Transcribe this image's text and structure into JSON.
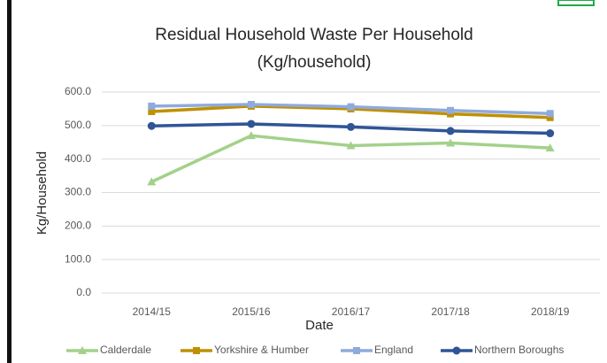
{
  "chart_data": {
    "type": "line",
    "title": "Residual Household Waste Per Household",
    "subtitle": "(Kg/household)",
    "x_label": "Date",
    "y_label": "Kg/Household",
    "categories": [
      "2014/15",
      "2015/16",
      "2016/17",
      "2017/18",
      "2018/19"
    ],
    "series": [
      {
        "name": "Calderdale",
        "color": "#a3d18a",
        "marker": "triangle",
        "values": [
          332,
          470,
          440,
          448,
          433
        ]
      },
      {
        "name": "Yorkshire & Humber",
        "color": "#bf9000",
        "marker": "square",
        "values": [
          542,
          558,
          550,
          535,
          524
        ]
      },
      {
        "name": "England",
        "color": "#8faadc",
        "marker": "square",
        "values": [
          558,
          563,
          556,
          545,
          536
        ]
      },
      {
        "name": "Northern Boroughs",
        "color": "#2f5597",
        "marker": "circle",
        "values": [
          499,
          505,
          496,
          484,
          477
        ]
      }
    ],
    "ylim": [
      0,
      600
    ],
    "yticks": [
      {
        "value": 0,
        "label": "0.0"
      },
      {
        "value": 100,
        "label": "100.0"
      },
      {
        "value": 200,
        "label": "200.0"
      },
      {
        "value": 300,
        "label": "300.0"
      },
      {
        "value": 400,
        "label": "400.0"
      },
      {
        "value": 500,
        "label": "500.0"
      },
      {
        "value": 600,
        "label": "600.0"
      }
    ],
    "grid": true,
    "legend": "bottom"
  }
}
